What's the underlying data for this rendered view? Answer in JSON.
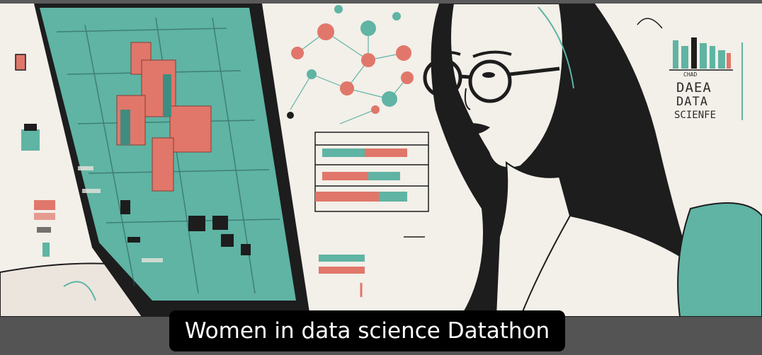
{
  "caption": {
    "text": "Women in data science Datathon"
  },
  "illustration": {
    "style": "flat illustration",
    "subject": "woman with glasses looking at a monitor",
    "poster_text": {
      "line1": "CHAD",
      "line2": "DAEA",
      "line3": "DATA",
      "line4": "SCIENFE"
    }
  },
  "colors": {
    "teal": "#5fb4a4",
    "salmon": "#e0776a",
    "cream": "#f3efe9",
    "ink": "#1d1d1d",
    "bar_gray": "#545454",
    "caption_bg": "#000000",
    "caption_text": "#ffffff"
  }
}
